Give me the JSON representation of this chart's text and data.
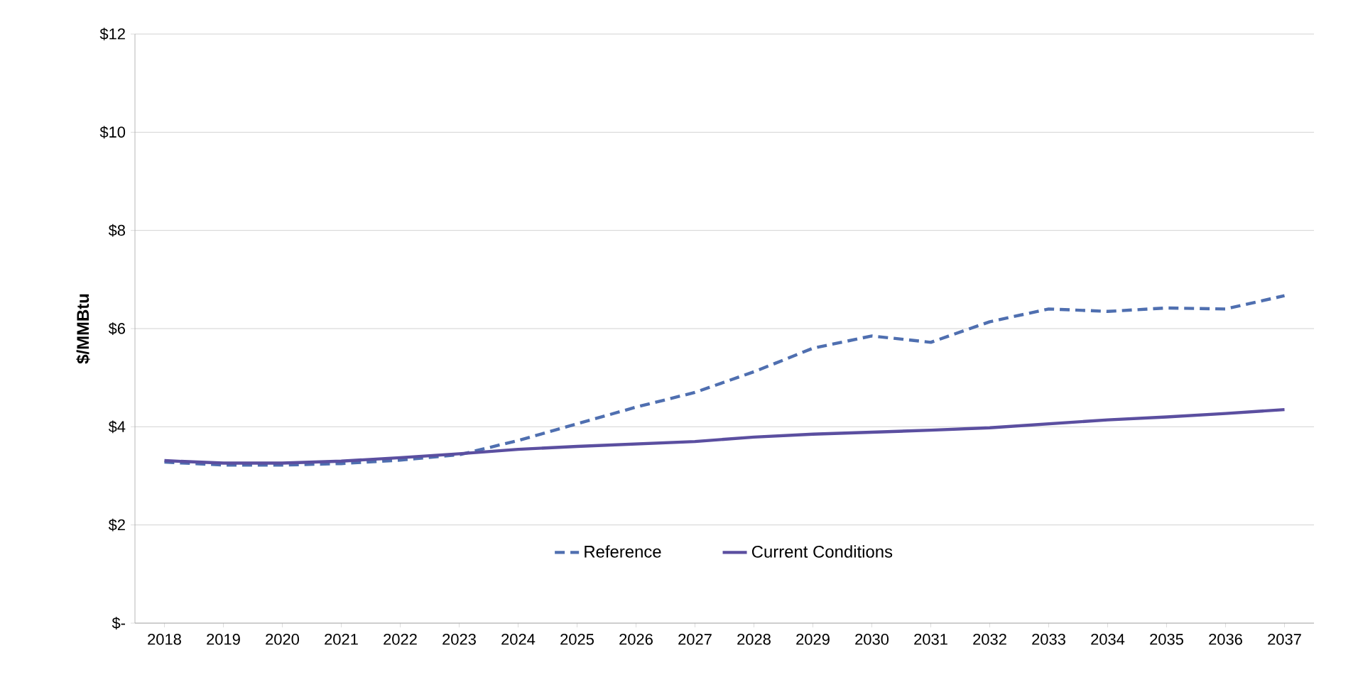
{
  "chart_data": {
    "type": "line",
    "ylabel": "$/MMBtu",
    "categories": [
      "2018",
      "2019",
      "2020",
      "2021",
      "2022",
      "2023",
      "2024",
      "2025",
      "2026",
      "2027",
      "2028",
      "2029",
      "2030",
      "2031",
      "2032",
      "2033",
      "2034",
      "2035",
      "2036",
      "2037"
    ],
    "series": [
      {
        "name": "Reference",
        "color": "#4f6fb0",
        "line_style": "dashed",
        "values": [
          3.28,
          3.22,
          3.22,
          3.25,
          3.32,
          3.43,
          3.72,
          4.06,
          4.4,
          4.7,
          5.12,
          5.6,
          5.85,
          5.72,
          6.14,
          6.4,
          6.35,
          6.42,
          6.4,
          6.67
        ]
      },
      {
        "name": "Current Conditions",
        "color": "#5b4fa0",
        "line_style": "solid",
        "values": [
          3.31,
          3.26,
          3.26,
          3.3,
          3.37,
          3.45,
          3.54,
          3.6,
          3.65,
          3.7,
          3.79,
          3.85,
          3.89,
          3.93,
          3.98,
          4.06,
          4.14,
          4.2,
          4.27,
          4.35
        ]
      }
    ],
    "ylim": [
      0,
      12
    ],
    "yticks": [
      {
        "value": 0,
        "label": "$-"
      },
      {
        "value": 2,
        "label": "$2"
      },
      {
        "value": 4,
        "label": "$4"
      },
      {
        "value": 6,
        "label": "$6"
      },
      {
        "value": 8,
        "label": "$8"
      },
      {
        "value": 10,
        "label": "$10"
      },
      {
        "value": 12,
        "label": "$12"
      }
    ],
    "grid": "y",
    "legend": "bottom",
    "marker": "none"
  }
}
